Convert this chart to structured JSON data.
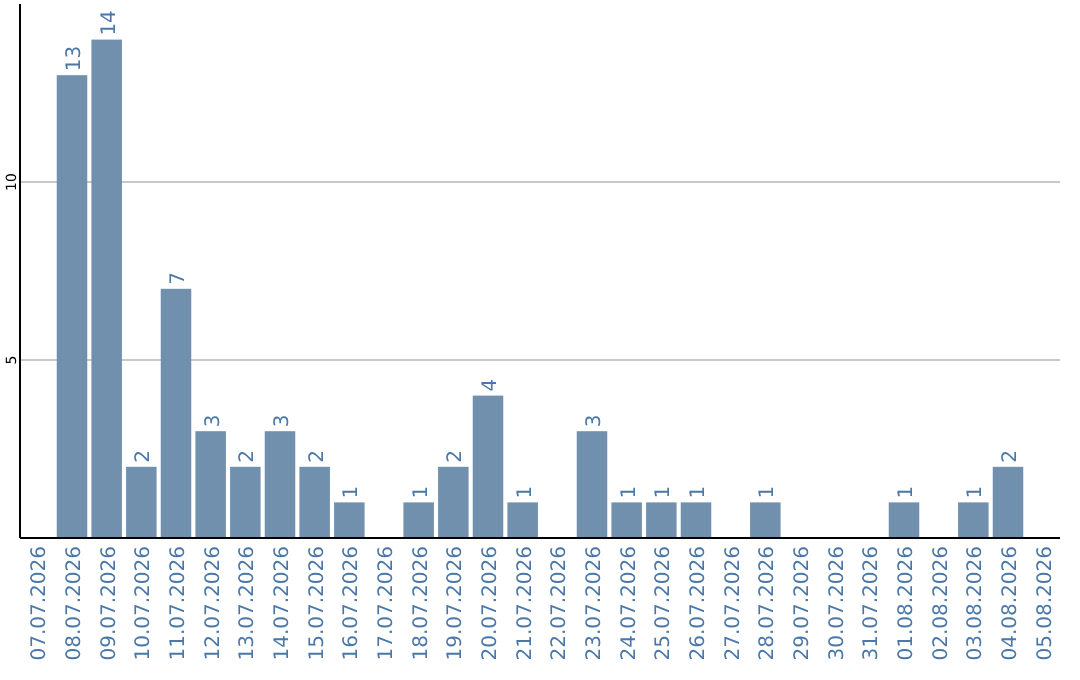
{
  "chart_data": {
    "type": "bar",
    "categories": [
      "07.07.2026",
      "08.07.2026",
      "09.07.2026",
      "10.07.2026",
      "11.07.2026",
      "12.07.2026",
      "13.07.2026",
      "14.07.2026",
      "15.07.2026",
      "16.07.2026",
      "17.07.2026",
      "18.07.2026",
      "19.07.2026",
      "20.07.2026",
      "21.07.2026",
      "22.07.2026",
      "23.07.2026",
      "24.07.2026",
      "25.07.2026",
      "26.07.2026",
      "27.07.2026",
      "28.07.2026",
      "29.07.2026",
      "30.07.2026",
      "31.07.2026",
      "01.08.2026",
      "02.08.2026",
      "03.08.2026",
      "04.08.2026",
      "05.08.2026"
    ],
    "values": [
      null,
      13,
      14,
      2,
      7,
      3,
      2,
      3,
      2,
      1,
      null,
      1,
      2,
      4,
      1,
      null,
      3,
      1,
      1,
      1,
      null,
      1,
      null,
      null,
      null,
      1,
      null,
      1,
      2,
      null
    ],
    "color": "#7090ae",
    "ylim": [
      0,
      15
    ],
    "yticks": [
      5,
      10
    ],
    "grid": "y",
    "data_labels": true
  }
}
